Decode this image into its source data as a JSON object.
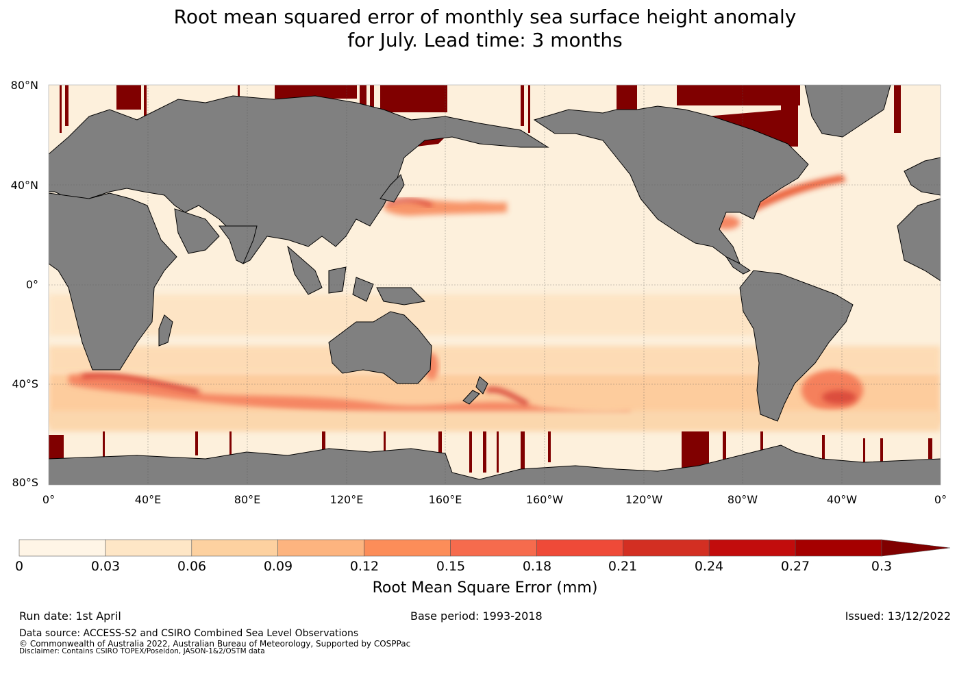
{
  "title_line1": "Root mean squared error of monthly sea surface height anomaly",
  "title_line2": "for July. Lead time: 3 months",
  "map": {
    "lat_labels": [
      "80°N",
      "40°N",
      "0°",
      "40°S",
      "80°S"
    ],
    "lon_labels": [
      "0°",
      "40°E",
      "80°E",
      "120°E",
      "160°E",
      "160°W",
      "120°W",
      "80°W",
      "40°W",
      "0°"
    ],
    "ocean_color": "#fdf0dc",
    "land_color": "#808080"
  },
  "colorbar": {
    "title": "Root Mean Square Error (mm)",
    "ticks": [
      "0",
      "0.03",
      "0.06",
      "0.09",
      "0.12",
      "0.15",
      "0.18",
      "0.21",
      "0.24",
      "0.27",
      "0.3"
    ],
    "colors": [
      "#fff5e6",
      "#fee6c6",
      "#fdd1a0",
      "#fdb47f",
      "#fc8d59",
      "#f66b4d",
      "#ef4a38",
      "#d32f22",
      "#c20c0c",
      "#a50000",
      "#800000"
    ]
  },
  "footer": {
    "run_date": "Run date: 1st April",
    "base_period": "Base period: 1993-2018",
    "issued": "Issued: 13/12/2022",
    "data_source": "Data source: ACCESS-S2 and CSIRO Combined Sea Level Observations",
    "copyright": "© Commonwealth of Australia 2022, Australian Bureau of Meteorology, Supported by COSPPac",
    "disclaimer": "Disclaimer: Contains CSIRO TOPEX/Poseidon, JASON-1&2/OSTM data"
  }
}
